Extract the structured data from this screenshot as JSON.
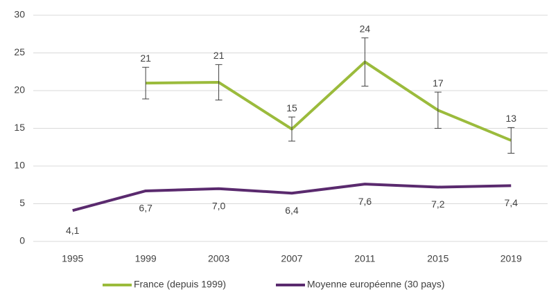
{
  "chart_data": {
    "type": "line",
    "categories": [
      "1995",
      "1999",
      "2003",
      "2007",
      "2011",
      "2015",
      "2019"
    ],
    "series": [
      {
        "name": "France (depuis 1999)",
        "color": "#9bbb3c",
        "values": [
          null,
          21.0,
          21.1,
          14.9,
          23.8,
          17.4,
          13.4
        ],
        "value_labels": [
          null,
          "21",
          "21",
          "15",
          "24",
          "17",
          "13"
        ],
        "errors": [
          null,
          2.1,
          2.35,
          1.6,
          3.2,
          2.4,
          1.7
        ]
      },
      {
        "name": "Moyenne européenne (30 pays)",
        "color": "#5a2a6e",
        "values": [
          4.1,
          6.7,
          7.0,
          6.4,
          7.6,
          7.2,
          7.4
        ],
        "value_labels": [
          "4,1",
          "6,7",
          "7,0",
          "6,4",
          "7,6",
          "7,2",
          "7,4"
        ]
      }
    ],
    "ylim": [
      0,
      30
    ],
    "yticks": [
      0,
      5,
      10,
      15,
      20,
      25,
      30
    ],
    "grid": true,
    "legend": "bottom"
  }
}
